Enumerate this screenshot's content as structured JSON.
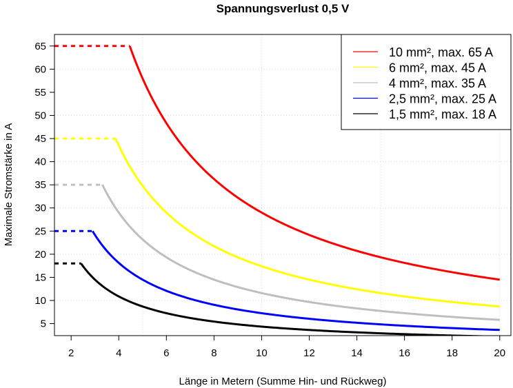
{
  "chart_data": {
    "type": "line",
    "title": "Spannungsverlust 0,5 V",
    "xlabel": "Länge in Metern (Summe Hin- und Rückweg)",
    "ylabel": "Maximale Stromstärke in A",
    "xlim": [
      1.3,
      20.47
    ],
    "ylim": [
      2.4,
      67.5
    ],
    "xticks": [
      2,
      4,
      6,
      8,
      10,
      12,
      14,
      16,
      18,
      20
    ],
    "yticks": [
      5,
      10,
      15,
      20,
      25,
      30,
      35,
      40,
      45,
      50,
      55,
      60,
      65
    ],
    "x_grid": [
      5,
      10,
      15,
      20
    ],
    "y_grid": [
      10,
      20,
      30,
      40,
      50,
      60
    ],
    "grid": true,
    "legend_position": "top-right",
    "model": "I = k / L, capped at max current (dashed cap segment)",
    "x_end": 20,
    "series": [
      {
        "name": "10 mm², max. 65 A",
        "color": "#ff0000",
        "max": 65,
        "k": 290,
        "knee_x": 4.46,
        "points": [
          [
            1.3,
            65
          ],
          [
            4.46,
            65
          ],
          [
            5,
            58
          ],
          [
            6,
            48.3
          ],
          [
            8,
            36.3
          ],
          [
            10,
            29
          ],
          [
            12,
            24.2
          ],
          [
            14,
            20.7
          ],
          [
            16,
            18.1
          ],
          [
            18,
            16.1
          ],
          [
            20,
            14.5
          ]
        ]
      },
      {
        "name": "6 mm², max. 45 A",
        "color": "#ffff00",
        "max": 45,
        "k": 174,
        "knee_x": 3.87,
        "points": [
          [
            1.3,
            45
          ],
          [
            3.87,
            45
          ],
          [
            5,
            34.8
          ],
          [
            6,
            29
          ],
          [
            8,
            21.8
          ],
          [
            10,
            17.4
          ],
          [
            12,
            14.5
          ],
          [
            14,
            12.4
          ],
          [
            16,
            10.9
          ],
          [
            18,
            9.7
          ],
          [
            20,
            8.7
          ]
        ]
      },
      {
        "name": "4 mm², max. 35 A",
        "color": "#bebebe",
        "max": 35,
        "k": 116,
        "knee_x": 3.31,
        "points": [
          [
            1.3,
            35
          ],
          [
            3.31,
            35
          ],
          [
            4,
            29
          ],
          [
            6,
            19.3
          ],
          [
            8,
            14.5
          ],
          [
            10,
            11.6
          ],
          [
            12,
            9.7
          ],
          [
            14,
            8.3
          ],
          [
            16,
            7.3
          ],
          [
            18,
            6.4
          ],
          [
            20,
            5.8
          ]
        ]
      },
      {
        "name": "2,5 mm², max. 25 A",
        "color": "#0000ff",
        "max": 25,
        "k": 72.5,
        "knee_x": 2.9,
        "points": [
          [
            1.3,
            25
          ],
          [
            2.9,
            25
          ],
          [
            4,
            18.1
          ],
          [
            6,
            12.1
          ],
          [
            8,
            9.1
          ],
          [
            10,
            7.3
          ],
          [
            12,
            6
          ],
          [
            14,
            5.2
          ],
          [
            16,
            4.5
          ],
          [
            18,
            4
          ],
          [
            20,
            3.6
          ]
        ]
      },
      {
        "name": "1,5 mm², max. 18 A",
        "color": "#000000",
        "max": 18,
        "k": 43.5,
        "knee_x": 2.42,
        "points": [
          [
            1.3,
            18
          ],
          [
            2.42,
            18
          ],
          [
            4,
            10.9
          ],
          [
            6,
            7.3
          ],
          [
            8,
            5.4
          ],
          [
            10,
            4.4
          ],
          [
            12,
            3.6
          ],
          [
            14,
            3.1
          ],
          [
            16,
            2.7
          ],
          [
            18,
            2.4
          ],
          [
            20,
            2.2
          ]
        ]
      }
    ]
  }
}
